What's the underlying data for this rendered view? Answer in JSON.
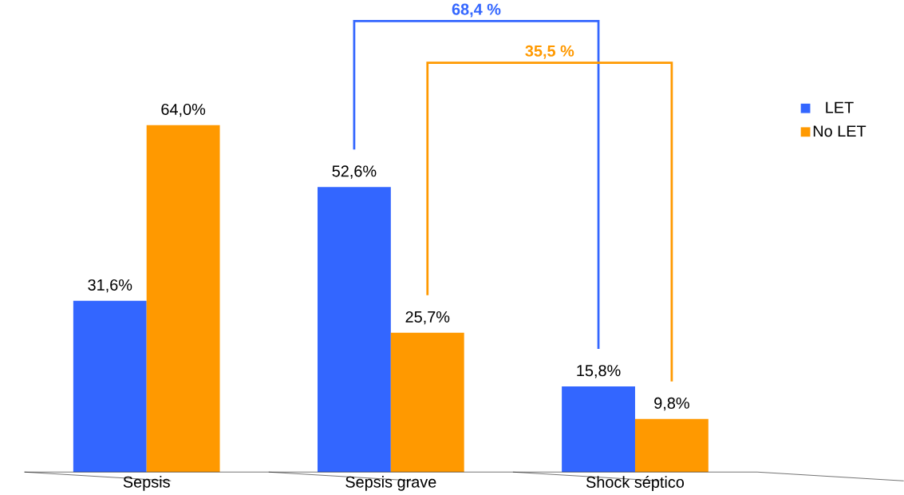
{
  "chart_data": {
    "type": "bar",
    "categories": [
      "Sepsis",
      "Sepsis grave",
      "Shock séptico"
    ],
    "series": [
      {
        "name": "LET",
        "color": "#3366ff",
        "values": [
          31.6,
          52.6,
          15.8
        ],
        "value_labels": [
          "31,6%",
          "52,6%",
          "15,8%"
        ]
      },
      {
        "name": "No LET",
        "color": "#ff9900",
        "values": [
          64.0,
          25.7,
          9.8
        ],
        "value_labels": [
          "64,0%",
          "25,7%",
          "9,8%"
        ]
      }
    ],
    "annotations": [
      "68,4 %",
      "35,5 %"
    ],
    "legend": "right"
  }
}
